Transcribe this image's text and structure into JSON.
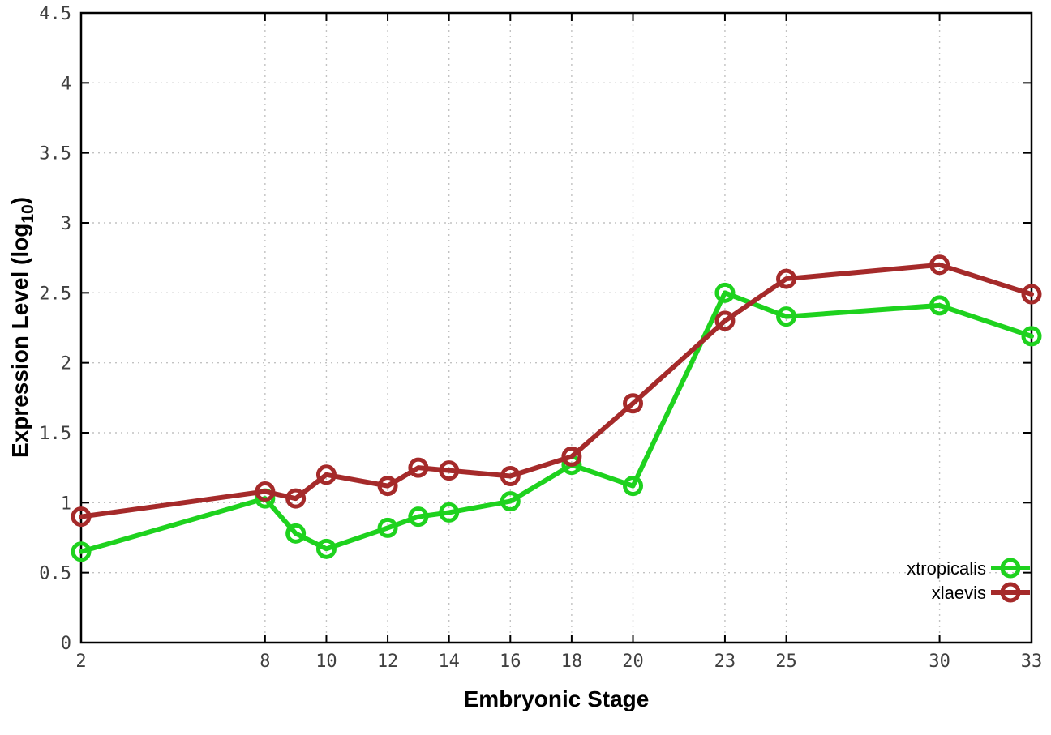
{
  "chart_data": {
    "type": "line",
    "title": "",
    "xlabel": "Embryonic Stage",
    "ylabel": "Expression Level (log10)",
    "ylabel_rich": {
      "pre": "Expression Level (log",
      "sub": "10",
      "post": ")"
    },
    "x": [
      2,
      8,
      9,
      10,
      12,
      13,
      14,
      16,
      18,
      20,
      23,
      25,
      30,
      33
    ],
    "xlim": [
      2,
      33
    ],
    "ylim": [
      0,
      4.5
    ],
    "x_tick_values": [
      2,
      8,
      10,
      12,
      14,
      16,
      18,
      20,
      23,
      25,
      30,
      33
    ],
    "x_tick_labels": [
      "2",
      "8",
      "10",
      "12",
      "14",
      "16",
      "18",
      "20",
      "23",
      "25",
      "30",
      "33"
    ],
    "y_tick_values": [
      0,
      0.5,
      1,
      1.5,
      2,
      2.5,
      3,
      3.5,
      4,
      4.5
    ],
    "y_tick_labels": [
      "0",
      "0.5",
      "1",
      "1.5",
      "2",
      "2.5",
      "3",
      "3.5",
      "4",
      "4.5"
    ],
    "grid": true,
    "marker": "open-circle",
    "legend_position": "inside-bottom-right",
    "series": [
      {
        "name": "xtropicalis",
        "color": "#1ed21e",
        "values": [
          0.65,
          1.03,
          0.78,
          0.67,
          0.82,
          0.9,
          0.93,
          1.01,
          1.27,
          1.12,
          2.5,
          2.33,
          2.41,
          2.19
        ]
      },
      {
        "name": "xlaevis",
        "color": "#a52a2a",
        "values": [
          0.9,
          1.08,
          1.03,
          1.2,
          1.12,
          1.25,
          1.23,
          1.19,
          1.33,
          1.71,
          2.3,
          2.6,
          2.7,
          2.49
        ]
      }
    ]
  },
  "style": {
    "background": "#ffffff",
    "grid_color": "#c2c2c2",
    "border_color": "#000000",
    "tick_color": "#000000",
    "tick_label_color": "#404040",
    "axis_title_color": "#000000"
  }
}
